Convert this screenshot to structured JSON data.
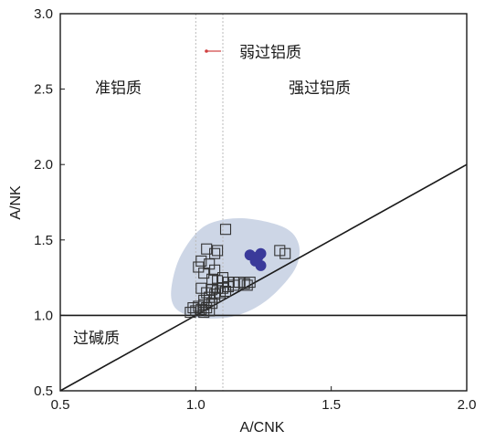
{
  "chart_data": {
    "type": "scatter",
    "title": "",
    "xlabel": "A/CNK",
    "ylabel": "A/NK",
    "xlim": [
      0.5,
      2.0
    ],
    "ylim": [
      0.5,
      3.0
    ],
    "xticks": [
      "0.5",
      "1.0",
      "1.5",
      "2.0"
    ],
    "yticks": [
      "0.5",
      "1.0",
      "1.5",
      "2.0",
      "2.5",
      "3.0"
    ],
    "grid": false,
    "regions": {
      "metaluminous": "准铝质",
      "weakly_peraluminous": "弱过铝质",
      "strongly_peraluminous": "强过铝质",
      "peralkaline": "过碱质"
    },
    "reference_lines": {
      "horizontal_y": 1.0,
      "diagonal": [
        [
          0.5,
          0.5
        ],
        [
          2.0,
          2.0
        ]
      ],
      "dotted_vertical_x": [
        1.0,
        1.1
      ]
    },
    "field_outline": [
      [
        0.97,
        1.0
      ],
      [
        1.04,
        0.98
      ],
      [
        1.13,
        0.99
      ],
      [
        1.22,
        1.05
      ],
      [
        1.3,
        1.16
      ],
      [
        1.37,
        1.32
      ],
      [
        1.38,
        1.47
      ],
      [
        1.33,
        1.58
      ],
      [
        1.2,
        1.64
      ],
      [
        1.09,
        1.63
      ],
      [
        1.01,
        1.56
      ],
      [
        0.94,
        1.38
      ],
      [
        0.91,
        1.18
      ],
      [
        0.92,
        1.06
      ]
    ],
    "colors": {
      "field": "#cdd6e6",
      "open_squares": "#333333",
      "filled_circles": "#3a3a9a",
      "lines": "#1a1a1a",
      "weak_marker": "#d04040"
    },
    "series": [
      {
        "marker": "open-square",
        "points": [
          [
            1.11,
            1.57
          ],
          [
            1.04,
            1.44
          ],
          [
            1.07,
            1.41
          ],
          [
            1.08,
            1.43
          ],
          [
            1.01,
            1.32
          ],
          [
            1.02,
            1.36
          ],
          [
            1.05,
            1.34
          ],
          [
            1.07,
            1.3
          ],
          [
            1.03,
            1.28
          ],
          [
            1.06,
            1.24
          ],
          [
            1.08,
            1.23
          ],
          [
            1.1,
            1.25
          ],
          [
            1.12,
            1.22
          ],
          [
            1.14,
            1.22
          ],
          [
            1.16,
            1.22
          ],
          [
            1.18,
            1.21
          ],
          [
            1.19,
            1.2
          ],
          [
            1.2,
            1.22
          ],
          [
            1.02,
            1.18
          ],
          [
            1.04,
            1.15
          ],
          [
            1.06,
            1.17
          ],
          [
            1.08,
            1.18
          ],
          [
            1.1,
            1.18
          ],
          [
            1.12,
            1.19
          ],
          [
            1.14,
            1.2
          ],
          [
            1.05,
            1.12
          ],
          [
            1.07,
            1.14
          ],
          [
            1.09,
            1.15
          ],
          [
            1.11,
            1.16
          ],
          [
            1.03,
            1.1
          ],
          [
            1.05,
            1.1
          ],
          [
            1.07,
            1.12
          ],
          [
            1.01,
            1.06
          ],
          [
            1.03,
            1.07
          ],
          [
            1.06,
            1.08
          ],
          [
            0.99,
            1.05
          ],
          [
            1.02,
            1.04
          ],
          [
            1.04,
            1.05
          ],
          [
            0.98,
            1.02
          ],
          [
            1.0,
            1.03
          ],
          [
            1.03,
            1.02
          ],
          [
            1.05,
            1.03
          ],
          [
            1.31,
            1.43
          ],
          [
            1.33,
            1.41
          ]
        ]
      },
      {
        "marker": "filled-circle",
        "points": [
          [
            1.2,
            1.4
          ],
          [
            1.23,
            1.39
          ],
          [
            1.24,
            1.41
          ],
          [
            1.22,
            1.36
          ],
          [
            1.24,
            1.33
          ]
        ]
      }
    ]
  }
}
